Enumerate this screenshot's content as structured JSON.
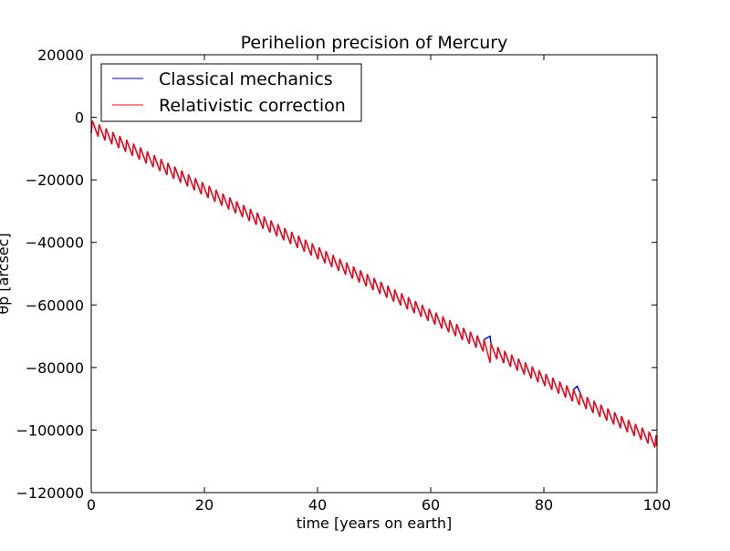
{
  "chart_data": {
    "type": "line",
    "title": "Perihelion precision of Mercury",
    "xlabel": "time [years on earth]",
    "ylabel": "θp [arcsec]",
    "xlim": [
      0,
      100
    ],
    "ylim": [
      -120000,
      20000
    ],
    "xticks": [
      0,
      20,
      40,
      60,
      80,
      100
    ],
    "yticks": [
      20000,
      0,
      -20000,
      -40000,
      -60000,
      -80000,
      -100000,
      -120000
    ],
    "xtick_labels": [
      "0",
      "20",
      "40",
      "60",
      "80",
      "100"
    ],
    "ytick_labels": [
      "20000",
      "0",
      "−20000",
      "−40000",
      "−60000",
      "−80000",
      "−100000",
      "−120000"
    ],
    "legend_position": "top-left",
    "trend": {
      "start": [
        0,
        -3000
      ],
      "end": [
        100,
        -104000
      ],
      "period_years": 1.215,
      "sawtooth_amplitude": 3500
    },
    "series": [
      {
        "name": "Classical mechanics",
        "color": "#0000ff",
        "spikes": [
          {
            "x": 70.5,
            "y": -70000
          },
          {
            "x": 85.9,
            "y": -86000
          }
        ]
      },
      {
        "name": "Relativistic correction",
        "color": "#ff0000",
        "spikes": [
          {
            "x": 70.5,
            "y": -78500
          }
        ]
      }
    ]
  }
}
